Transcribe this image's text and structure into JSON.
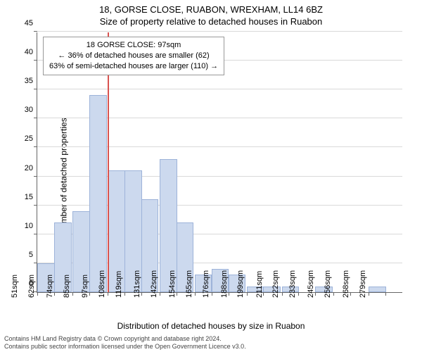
{
  "title": {
    "line1": "18, GORSE CLOSE, RUABON, WREXHAM, LL14 6BZ",
    "line2": "Size of property relative to detached houses in Ruabon"
  },
  "chart": {
    "type": "histogram",
    "ylim": [
      0,
      45
    ],
    "ytick_step": 5,
    "yticks": [
      0,
      5,
      10,
      15,
      20,
      25,
      30,
      35,
      40,
      45
    ],
    "ylabel": "Number of detached properties",
    "xlabel": "Distribution of detached houses by size in Ruabon",
    "xticks": [
      51,
      62,
      74,
      85,
      97,
      108,
      119,
      131,
      142,
      154,
      165,
      176,
      188,
      199,
      211,
      222,
      233,
      245,
      256,
      268,
      279
    ],
    "xtick_suffix": "sqm",
    "bars": [
      {
        "x": 51,
        "h": 5
      },
      {
        "x": 62,
        "h": 12
      },
      {
        "x": 74,
        "h": 14
      },
      {
        "x": 85,
        "h": 34
      },
      {
        "x": 97,
        "h": 21
      },
      {
        "x": 108,
        "h": 21
      },
      {
        "x": 119,
        "h": 16
      },
      {
        "x": 131,
        "h": 23
      },
      {
        "x": 142,
        "h": 12
      },
      {
        "x": 154,
        "h": 3
      },
      {
        "x": 165,
        "h": 4
      },
      {
        "x": 176,
        "h": 3
      },
      {
        "x": 188,
        "h": 1
      },
      {
        "x": 199,
        "h": 1
      },
      {
        "x": 211,
        "h": 1
      },
      {
        "x": 222,
        "h": 0
      },
      {
        "x": 233,
        "h": 1
      },
      {
        "x": 245,
        "h": 0
      },
      {
        "x": 256,
        "h": 0
      },
      {
        "x": 268,
        "h": 1
      },
      {
        "x": 279,
        "h": 0
      }
    ],
    "bar_color": "#ccd9ee",
    "bar_border_color": "#9db3d9",
    "grid_color": "#d9d9d9",
    "axis_color": "#666666",
    "background_color": "#ffffff",
    "reference_line": {
      "x": 97,
      "color": "#d9534f"
    },
    "annotation": {
      "line1": "18 GORSE CLOSE: 97sqm",
      "line2": "← 36% of detached houses are smaller (62)",
      "line3": "63% of semi-detached houses are larger (110) →",
      "border_color": "#999999",
      "background_color": "#ffffff"
    }
  },
  "footer": {
    "line1": "Contains HM Land Registry data © Crown copyright and database right 2024.",
    "line2": "Contains public sector information licensed under the Open Government Licence v3.0."
  }
}
